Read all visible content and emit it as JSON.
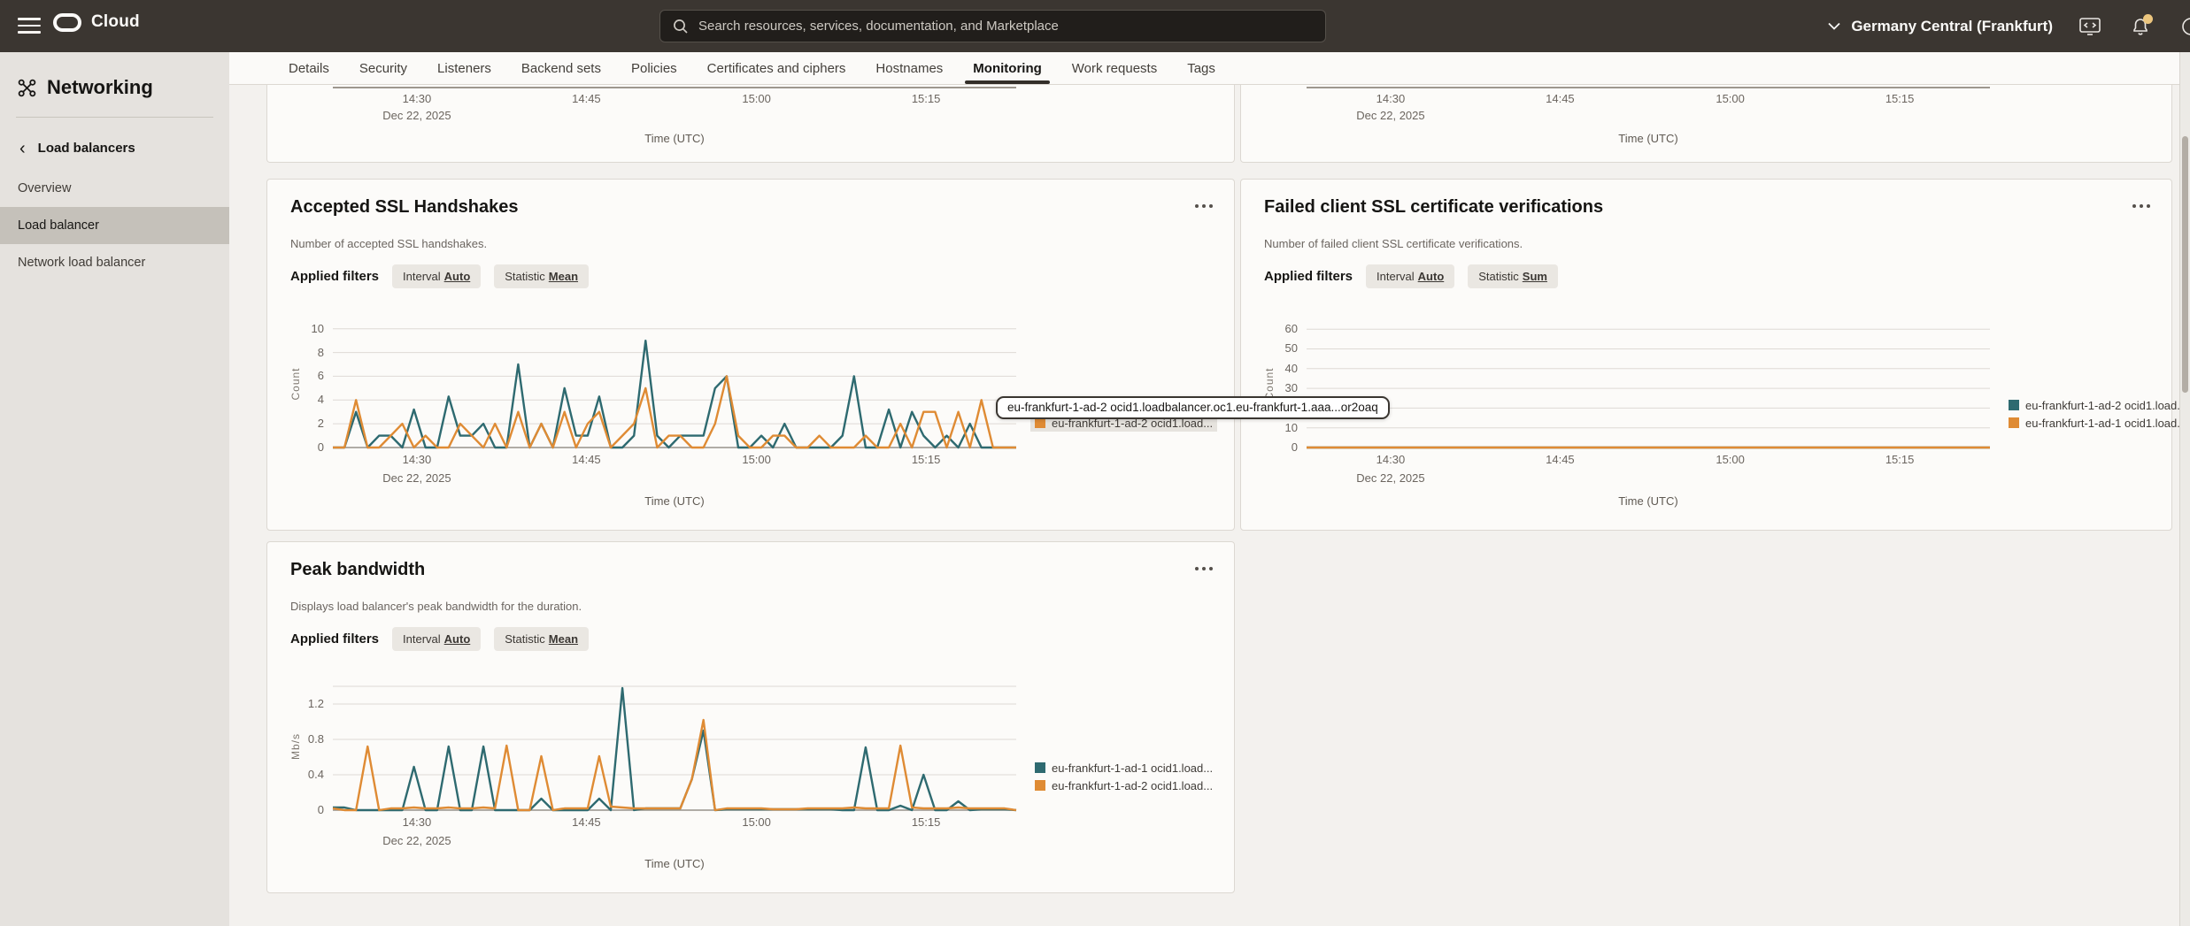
{
  "header": {
    "product": "Cloud",
    "search_placeholder": "Search resources, services, documentation, and Marketplace",
    "region": "Germany Central (Frankfurt)"
  },
  "sidebar": {
    "title": "Networking",
    "back_link": "Load balancers",
    "items": [
      {
        "label": "Overview",
        "selected": false
      },
      {
        "label": "Load balancer",
        "selected": true
      },
      {
        "label": "Network load balancer",
        "selected": false
      }
    ]
  },
  "tabs": {
    "items": [
      "Details",
      "Security",
      "Listeners",
      "Backend sets",
      "Policies",
      "Certificates and ciphers",
      "Hostnames",
      "Monitoring",
      "Work requests",
      "Tags"
    ],
    "active": "Monitoring"
  },
  "labels": {
    "applied_filters": "Applied filters"
  },
  "tooltip": {
    "text": "eu-frankfurt-1-ad-2 ocid1.loadbalancer.oc1.eu-frankfurt-1.aaa...or2oaq"
  },
  "colors": {
    "teal": "#2e6a70",
    "orange": "#df8b34"
  },
  "chart_data": [
    {
      "type": "line",
      "partial": true,
      "xlabel": "Time (UTC)",
      "x_ticks": {
        "labels": [
          "14:30",
          "14:45",
          "15:00",
          "15:15"
        ],
        "fractions": [
          0.123,
          0.371,
          0.62,
          0.868
        ],
        "date": "Dec 22, 2025"
      }
    },
    {
      "type": "line",
      "partial": true,
      "xlabel": "Time (UTC)",
      "x_ticks": {
        "labels": [
          "14:30",
          "14:45",
          "15:00",
          "15:15"
        ],
        "fractions": [
          0.123,
          0.371,
          0.62,
          0.868
        ],
        "date": "Dec 22, 2025"
      }
    },
    {
      "type": "line",
      "title": "Accepted SSL Handshakes",
      "description": "Number of accepted SSL handshakes.",
      "filters": [
        {
          "label": "Interval",
          "value": "Auto"
        },
        {
          "label": "Statistic",
          "value": "Mean"
        }
      ],
      "ylabel": "Count",
      "ymax": 10.8,
      "yticks": [
        10,
        8,
        6,
        4,
        2,
        0
      ],
      "xlabel": "Time (UTC)",
      "x_ticks": {
        "labels": [
          "14:30",
          "14:45",
          "15:00",
          "15:15"
        ],
        "fractions": [
          0.123,
          0.371,
          0.62,
          0.868
        ],
        "date": "Dec 22, 2025"
      },
      "series": [
        {
          "name": "eu-frankfurt-1-ad-1 ocid1.load...",
          "color": "teal",
          "values": [
            0,
            0,
            3,
            0,
            1,
            1,
            0,
            3.2,
            0,
            0,
            4.3,
            1,
            1,
            2,
            0,
            0,
            7,
            0,
            2,
            0,
            5,
            1,
            1,
            4.3,
            0,
            0,
            1,
            9,
            1,
            0,
            1,
            1,
            1,
            5,
            6,
            0,
            0,
            1,
            0,
            2,
            0,
            0,
            0,
            0,
            1,
            6,
            0,
            0,
            3.2,
            0,
            3,
            1,
            0,
            1,
            0,
            2,
            0,
            0,
            0,
            0
          ]
        },
        {
          "name": "eu-frankfurt-1-ad-2 ocid1.load...",
          "color": "orange",
          "hovered": true,
          "values": [
            0,
            0,
            4,
            0,
            0,
            1,
            2,
            0,
            1,
            0,
            0,
            2,
            1,
            0,
            2,
            0,
            3,
            0,
            2,
            0,
            3,
            0,
            2,
            3,
            0,
            1,
            2,
            5,
            0,
            1,
            1,
            0,
            0,
            2,
            6,
            1,
            0,
            0,
            1,
            1,
            0,
            0,
            1,
            0,
            0,
            0,
            1,
            0,
            0,
            2,
            0,
            3,
            3,
            0,
            3,
            0,
            4,
            0,
            0,
            0
          ]
        }
      ]
    },
    {
      "type": "line",
      "title": "Failed client SSL certificate verifications",
      "description": "Number of failed client SSL certificate verifications.",
      "filters": [
        {
          "label": "Interval",
          "value": "Auto"
        },
        {
          "label": "Statistic",
          "value": "Sum"
        }
      ],
      "ylabel": "Count",
      "ymax": 65,
      "yticks": [
        60,
        50,
        40,
        30,
        20,
        10,
        0
      ],
      "xlabel": "Time (UTC)",
      "x_ticks": {
        "labels": [
          "14:30",
          "14:45",
          "15:00",
          "15:15"
        ],
        "fractions": [
          0.123,
          0.371,
          0.62,
          0.868
        ],
        "date": "Dec 22, 2025"
      },
      "series": [
        {
          "name": "eu-frankfurt-1-ad-2 ocid1.load...",
          "color": "teal",
          "values": [
            0,
            0,
            0,
            0,
            0,
            0,
            0,
            0,
            0,
            0,
            0,
            0,
            0,
            0,
            0,
            0,
            0,
            0,
            0,
            0,
            0,
            0,
            0,
            0,
            0,
            0,
            0,
            0,
            0,
            0,
            0,
            0,
            0,
            0,
            0,
            0,
            0,
            0,
            0,
            0,
            0,
            0,
            0,
            0,
            0,
            0,
            0,
            0,
            0,
            0,
            0,
            0,
            0,
            0,
            0,
            0,
            0,
            0,
            0,
            0
          ]
        },
        {
          "name": "eu-frankfurt-1-ad-1 ocid1.load...",
          "color": "orange",
          "values": [
            0,
            0,
            0,
            0,
            0,
            0,
            0,
            0,
            0,
            0,
            0,
            0,
            0,
            0,
            0,
            0,
            0,
            0,
            0,
            0,
            0,
            0,
            0,
            0,
            0,
            0,
            0,
            0,
            0,
            0,
            0,
            0,
            0,
            0,
            0,
            0,
            0,
            0,
            0,
            0,
            0,
            0,
            0,
            0,
            0,
            0,
            0,
            0,
            0,
            0,
            0,
            0,
            0,
            0,
            0,
            0,
            0,
            0,
            0,
            0
          ]
        }
      ]
    },
    {
      "type": "line",
      "title": "Peak bandwidth",
      "description": "Displays load balancer's peak bandwidth for the duration.",
      "filters": [
        {
          "label": "Interval",
          "value": "Auto"
        },
        {
          "label": "Statistic",
          "value": "Mean"
        }
      ],
      "ylabel": "Mb/s",
      "ymax": 1.45,
      "yticks": [
        1.2,
        0.8,
        0.4,
        0
      ],
      "ygrid_extra": [
        1.4
      ],
      "xlabel": "Time (UTC)",
      "x_ticks": {
        "labels": [
          "14:30",
          "14:45",
          "15:00",
          "15:15"
        ],
        "fractions": [
          0.123,
          0.371,
          0.62,
          0.868
        ],
        "date": "Dec 22, 2025"
      },
      "series": [
        {
          "name": "eu-frankfurt-1-ad-1 ocid1.load...",
          "color": "teal",
          "values": [
            0.03,
            0.03,
            0,
            0,
            0,
            0,
            0,
            0.49,
            0,
            0,
            0.72,
            0,
            0,
            0.72,
            0,
            0,
            0,
            0,
            0.13,
            0,
            0,
            0,
            0,
            0.13,
            0,
            1.38,
            0,
            0.02,
            0.02,
            0.02,
            0.02,
            0.35,
            0.9,
            0,
            0.01,
            0.01,
            0.01,
            0.01,
            0.01,
            0.01,
            0.01,
            0.01,
            0.01,
            0.01,
            0,
            0,
            0.71,
            0,
            0,
            0.05,
            0,
            0.4,
            0,
            0,
            0.1,
            0,
            0.01,
            0.01,
            0.01,
            0
          ]
        },
        {
          "name": "eu-frankfurt-1-ad-2 ocid1.load...",
          "color": "orange",
          "values": [
            0.02,
            0,
            0,
            0.72,
            0,
            0.02,
            0.02,
            0.03,
            0.02,
            0.02,
            0.03,
            0.02,
            0.02,
            0.03,
            0.02,
            0.73,
            0,
            0,
            0.61,
            0,
            0.02,
            0.02,
            0.02,
            0.61,
            0.04,
            0.03,
            0.02,
            0.02,
            0.02,
            0.02,
            0.02,
            0.35,
            1.02,
            0,
            0.02,
            0.02,
            0.02,
            0.02,
            0.01,
            0.01,
            0.01,
            0.02,
            0.02,
            0.02,
            0.02,
            0.03,
            0.02,
            0.02,
            0.02,
            0.73,
            0.03,
            0.02,
            0.02,
            0.02,
            0.03,
            0.02,
            0.02,
            0.02,
            0.02,
            0
          ]
        }
      ]
    }
  ]
}
